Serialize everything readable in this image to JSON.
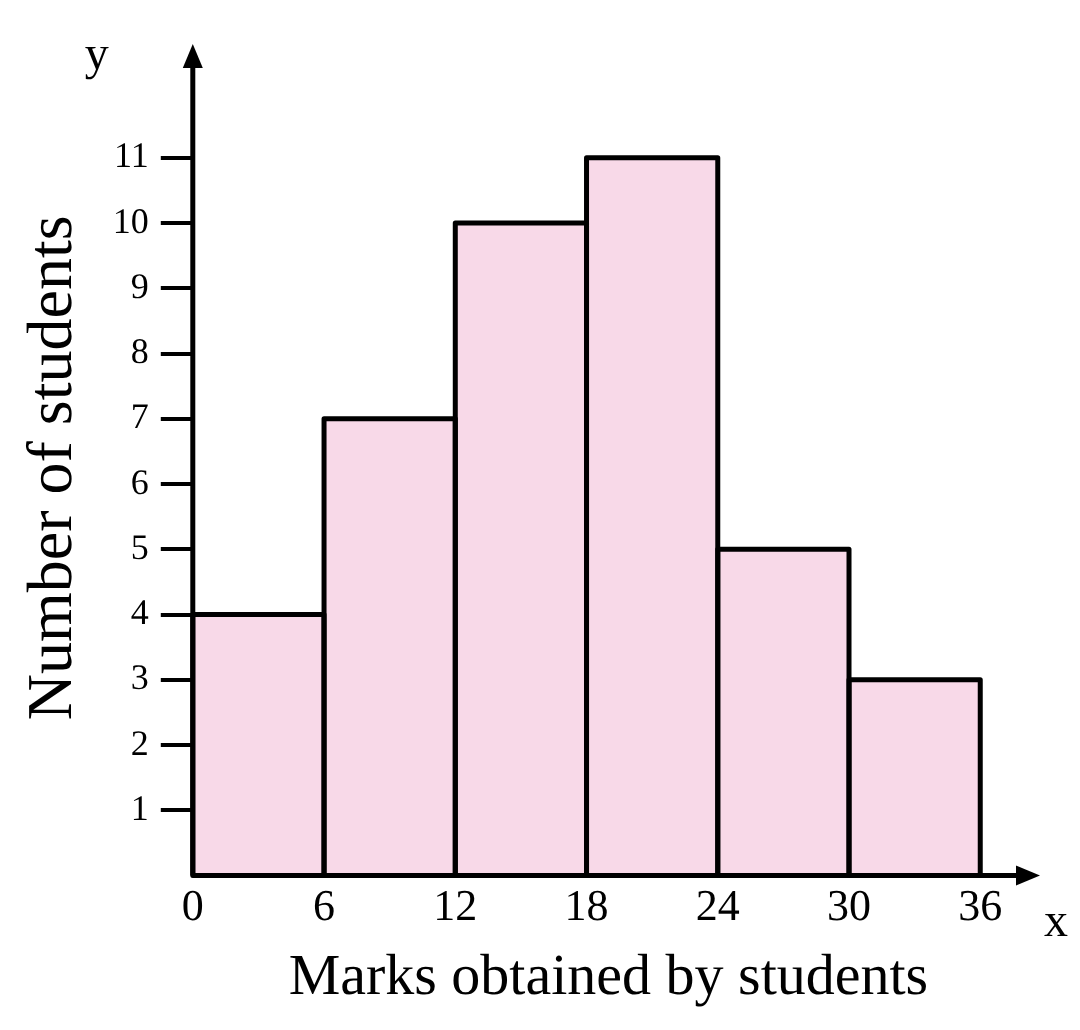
{
  "chart_data": {
    "type": "histogram",
    "xlabel": "Marks obtained by students",
    "ylabel": "Number of students",
    "bins": [
      0,
      6,
      12,
      18,
      24,
      30,
      36
    ],
    "values": [
      4,
      7,
      10,
      11,
      5,
      3
    ],
    "color": "#f8d9e8",
    "xlim": [
      0,
      38
    ],
    "xticks": [
      0,
      6,
      12,
      18,
      24,
      30,
      36
    ],
    "ylim": [
      0,
      12.5
    ],
    "yticks": [
      1,
      2,
      3,
      4,
      5,
      6,
      7,
      8,
      9,
      10,
      11
    ],
    "grid": false,
    "legend": false,
    "annotations": [
      "x",
      "y"
    ]
  }
}
